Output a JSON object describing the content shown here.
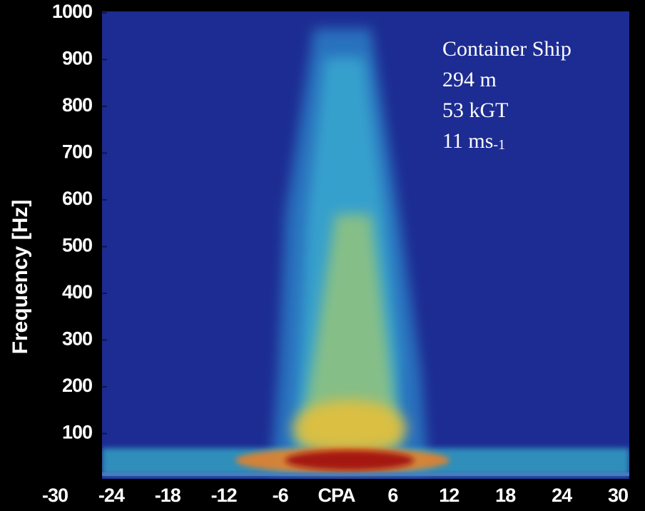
{
  "chart_data": {
    "type": "spectrogram",
    "ylabel": "Frequency [Hz]",
    "xlim": [
      -30,
      30
    ],
    "xticks": [
      -30,
      -24,
      -18,
      -12,
      -6,
      {
        "value": 0,
        "label": "CPA"
      },
      6,
      12,
      18,
      24,
      30
    ],
    "ylim": [
      0,
      1000
    ],
    "yticks": [
      100,
      200,
      300,
      400,
      500,
      600,
      700,
      800,
      900,
      1000
    ],
    "annotations": [
      {
        "text": "Container Ship"
      },
      {
        "text": "294 m"
      },
      {
        "text": "53 kGT"
      },
      {
        "text": "11 ms",
        "sub": "-1"
      }
    ],
    "background_color": "#1d2c92"
  }
}
